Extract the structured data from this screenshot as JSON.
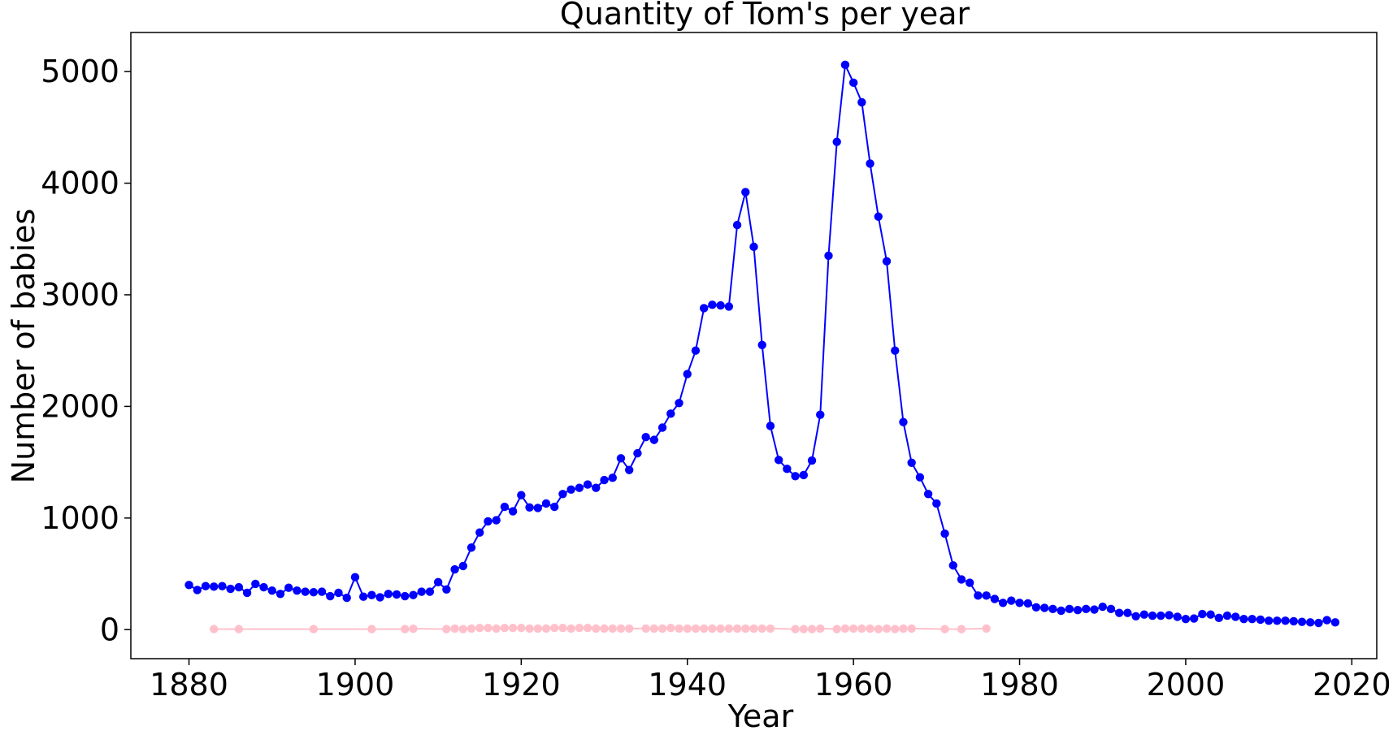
{
  "chart_data": {
    "type": "line",
    "title": "Quantity of Tom's per year",
    "xlabel": "Year",
    "ylabel": "Number of babies",
    "xlim": [
      1873,
      2023
    ],
    "ylim": [
      -260,
      5350
    ],
    "x_ticks": [
      1880,
      1900,
      1920,
      1940,
      1960,
      1980,
      2000,
      2020
    ],
    "y_ticks": [
      0,
      1000,
      2000,
      3000,
      4000,
      5000
    ],
    "grid": false,
    "legend": "none",
    "series": [
      {
        "color": "#0000ff",
        "x": [
          1880,
          1881,
          1882,
          1883,
          1884,
          1885,
          1886,
          1887,
          1888,
          1889,
          1890,
          1891,
          1892,
          1893,
          1894,
          1895,
          1896,
          1897,
          1898,
          1899,
          1900,
          1901,
          1902,
          1903,
          1904,
          1905,
          1906,
          1907,
          1908,
          1909,
          1910,
          1911,
          1912,
          1913,
          1914,
          1915,
          1916,
          1917,
          1918,
          1919,
          1920,
          1921,
          1922,
          1923,
          1924,
          1925,
          1926,
          1927,
          1928,
          1929,
          1930,
          1931,
          1932,
          1933,
          1934,
          1935,
          1936,
          1937,
          1938,
          1939,
          1940,
          1941,
          1942,
          1943,
          1944,
          1945,
          1946,
          1947,
          1948,
          1949,
          1950,
          1951,
          1952,
          1953,
          1954,
          1955,
          1956,
          1957,
          1958,
          1959,
          1960,
          1961,
          1962,
          1963,
          1964,
          1965,
          1966,
          1967,
          1968,
          1969,
          1970,
          1971,
          1972,
          1973,
          1974,
          1975,
          1976,
          1977,
          1978,
          1979,
          1980,
          1981,
          1982,
          1983,
          1984,
          1985,
          1986,
          1987,
          1988,
          1989,
          1990,
          1991,
          1992,
          1993,
          1994,
          1995,
          1996,
          1997,
          1998,
          1999,
          2000,
          2001,
          2002,
          2003,
          2004,
          2005,
          2006,
          2007,
          2008,
          2009,
          2010,
          2011,
          2012,
          2013,
          2014,
          2015,
          2016,
          2017,
          2018
        ],
        "values": [
          400,
          355,
          390,
          385,
          390,
          365,
          380,
          330,
          410,
          380,
          350,
          320,
          375,
          350,
          340,
          335,
          340,
          300,
          330,
          285,
          470,
          295,
          310,
          290,
          320,
          315,
          300,
          310,
          340,
          340,
          425,
          360,
          540,
          570,
          735,
          870,
          970,
          980,
          1100,
          1060,
          1205,
          1095,
          1090,
          1130,
          1100,
          1215,
          1255,
          1270,
          1300,
          1270,
          1340,
          1360,
          1535,
          1430,
          1580,
          1725,
          1700,
          1810,
          1935,
          2030,
          2290,
          2500,
          2880,
          2910,
          2905,
          2895,
          3625,
          3920,
          3430,
          2550,
          1825,
          1520,
          1440,
          1375,
          1385,
          1515,
          1925,
          3350,
          4370,
          5060,
          4900,
          4725,
          4175,
          3700,
          3300,
          2500,
          1860,
          1495,
          1365,
          1215,
          1130,
          860,
          575,
          450,
          420,
          305,
          305,
          275,
          240,
          260,
          240,
          235,
          200,
          195,
          185,
          170,
          185,
          175,
          185,
          180,
          205,
          185,
          150,
          150,
          120,
          135,
          125,
          125,
          130,
          115,
          95,
          100,
          140,
          135,
          105,
          125,
          115,
          95,
          95,
          90,
          80,
          80,
          80,
          75,
          70,
          65,
          60,
          85,
          65
        ]
      },
      {
        "color": "#ffc0cb",
        "x": [
          1883,
          1886,
          1895,
          1902,
          1906,
          1907,
          1911,
          1912,
          1913,
          1914,
          1915,
          1916,
          1917,
          1918,
          1919,
          1920,
          1921,
          1922,
          1923,
          1924,
          1925,
          1926,
          1927,
          1928,
          1929,
          1930,
          1931,
          1932,
          1933,
          1935,
          1936,
          1937,
          1938,
          1939,
          1940,
          1941,
          1942,
          1943,
          1944,
          1945,
          1946,
          1947,
          1948,
          1949,
          1950,
          1953,
          1954,
          1955,
          1956,
          1958,
          1959,
          1960,
          1961,
          1962,
          1963,
          1964,
          1965,
          1966,
          1967,
          1971,
          1973,
          1976
        ],
        "values": [
          5,
          5,
          5,
          5,
          5,
          8,
          5,
          10,
          5,
          10,
          15,
          15,
          10,
          15,
          15,
          15,
          10,
          10,
          10,
          15,
          15,
          10,
          15,
          15,
          10,
          10,
          10,
          10,
          10,
          10,
          10,
          10,
          15,
          10,
          10,
          10,
          10,
          10,
          10,
          10,
          10,
          10,
          10,
          10,
          10,
          5,
          5,
          5,
          10,
          5,
          10,
          10,
          10,
          10,
          5,
          10,
          5,
          10,
          10,
          5,
          5,
          10
        ]
      }
    ]
  }
}
